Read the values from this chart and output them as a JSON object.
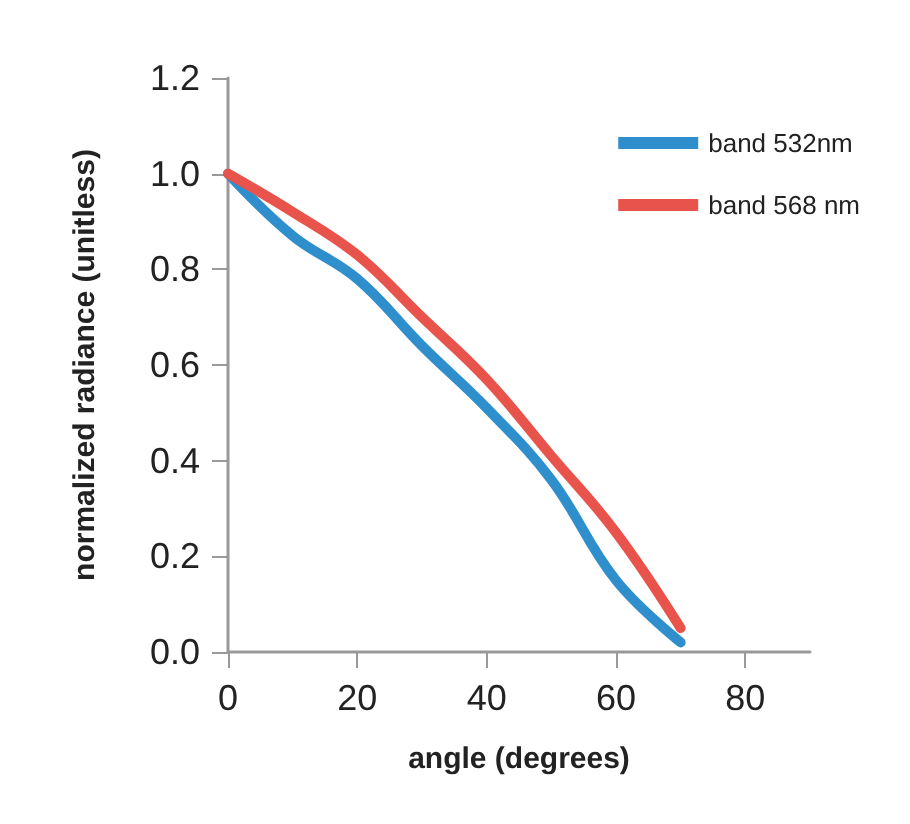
{
  "chart_data": {
    "type": "line",
    "xlabel": "angle (degrees)",
    "ylabel": "normalized radiance (unitless)",
    "x": [
      0,
      10,
      20,
      30,
      40,
      50,
      60,
      70
    ],
    "series": [
      {
        "name": "band 532nm",
        "color": "#2e8fcc",
        "values": [
          1.0,
          0.87,
          0.78,
          0.64,
          0.51,
          0.36,
          0.15,
          0.02
        ]
      },
      {
        "name": "band 568 nm",
        "color": "#e8544b",
        "values": [
          1.0,
          0.92,
          0.83,
          0.7,
          0.57,
          0.41,
          0.25,
          0.05
        ]
      }
    ],
    "xlim": [
      0,
      90
    ],
    "xticks": [
      0,
      20,
      40,
      60,
      80
    ],
    "ylim": [
      0,
      1.2
    ],
    "yticks": [
      {
        "value": 0,
        "label": "0.0"
      },
      0.2,
      0.4,
      0.6,
      0.8,
      {
        "value": 1,
        "label": "1.0"
      },
      1.2
    ],
    "grid": false,
    "legend": "top right",
    "marker": "none",
    "line_style": "solid"
  }
}
